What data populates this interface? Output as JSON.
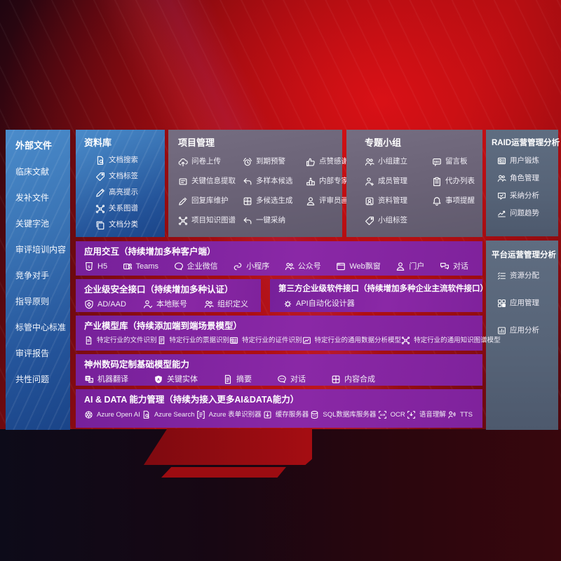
{
  "colors": {
    "background_red": "#b01014",
    "panel_blue": "#2f66ab",
    "panel_slate": "#6a6276",
    "panel_steel": "#56637b",
    "row_purple": "#8228a0",
    "text": "#ffffff"
  },
  "left_panel": {
    "title": "外部文件",
    "items": [
      {
        "label": "临床文献"
      },
      {
        "label": "发补文件"
      },
      {
        "label": "关键字池"
      },
      {
        "label": "审评培训内容"
      },
      {
        "label": "竞争对手"
      },
      {
        "label": "指导原则"
      },
      {
        "label": "标管中心标准"
      },
      {
        "label": "审评报告"
      },
      {
        "label": "共性问题"
      }
    ]
  },
  "library": {
    "title": "资料库",
    "items": [
      {
        "icon": "doc-search-icon",
        "label": "文档搜索"
      },
      {
        "icon": "tag-icon",
        "label": "文档标签"
      },
      {
        "icon": "highlighter-icon",
        "label": "高亮提示"
      },
      {
        "icon": "relation-graph-icon",
        "label": "关系图谱"
      },
      {
        "icon": "doc-category-icon",
        "label": "文档分类"
      }
    ]
  },
  "project": {
    "title": "项目管理",
    "items": [
      {
        "icon": "upload-cloud-icon",
        "label": "问卷上传"
      },
      {
        "icon": "alarm-icon",
        "label": "到期预警"
      },
      {
        "icon": "thumbs-up-icon",
        "label": "点赞感谢"
      },
      {
        "icon": "info-extract-icon",
        "label": "关键信息提取"
      },
      {
        "icon": "multi-sample-icon",
        "label": "多样本候选"
      },
      {
        "icon": "rank-icon",
        "label": "内部专家排名"
      },
      {
        "icon": "edit-pen-icon",
        "label": "回复库维护"
      },
      {
        "icon": "multi-generate-icon",
        "label": "多候选生成"
      },
      {
        "icon": "reviewer-icon",
        "label": "评审员画像"
      },
      {
        "icon": "knowledge-graph-icon",
        "label": "项目知识图谱"
      },
      {
        "icon": "adopt-icon",
        "label": "一键采纳"
      }
    ]
  },
  "groups": {
    "title": "专题小组",
    "items": [
      {
        "icon": "team-icon",
        "label": "小组建立"
      },
      {
        "icon": "bbs-icon",
        "label": "留言板"
      },
      {
        "icon": "member-icon",
        "label": "成员管理"
      },
      {
        "icon": "todo-icon",
        "label": "代办列表"
      },
      {
        "icon": "material-icon",
        "label": "资料管理"
      },
      {
        "icon": "bell-icon",
        "label": "事项提醒"
      },
      {
        "icon": "tag-icon",
        "label": "小组标签"
      }
    ]
  },
  "raid": {
    "title": "RAID运营管理分析",
    "items": [
      {
        "icon": "id-card-icon",
        "label": "用户锻炼"
      },
      {
        "icon": "roles-icon",
        "label": "角色管理"
      },
      {
        "icon": "adopt-analysis-icon",
        "label": "采纳分析"
      },
      {
        "icon": "trend-icon",
        "label": "问题趋势"
      }
    ]
  },
  "platform": {
    "title": "平台运营管理分析",
    "items": [
      {
        "icon": "allocation-icon",
        "label": "资源分配"
      },
      {
        "icon": "apps-icon",
        "label": "应用管理"
      },
      {
        "icon": "app-analysis-icon",
        "label": "应用分析"
      }
    ]
  },
  "rows": {
    "interaction": {
      "title": "应用交互（持续增加多种客户端）",
      "items": [
        {
          "icon": "h5-icon",
          "label": "H5"
        },
        {
          "icon": "teams-icon",
          "label": "Teams"
        },
        {
          "icon": "wecom-icon",
          "label": "企业微信"
        },
        {
          "icon": "miniprogram-icon",
          "label": "小程序"
        },
        {
          "icon": "official-account-icon",
          "label": "公众号"
        },
        {
          "icon": "web-window-icon",
          "label": "Web飘窗"
        },
        {
          "icon": "portal-icon",
          "label": "门户"
        },
        {
          "icon": "dialog-icon",
          "label": "对话"
        }
      ]
    },
    "security": {
      "title": "企业级安全接口（持续增加多种认证）",
      "items": [
        {
          "icon": "shield-icon",
          "label": "AD/AAD"
        },
        {
          "icon": "local-account-icon",
          "label": "本地账号"
        },
        {
          "icon": "org-icon",
          "label": "组织定义"
        }
      ]
    },
    "thirdparty": {
      "title": "第三方企业级软件接口（持续增加多种企业主流软件接口）",
      "items": [
        {
          "icon": "api-gear-icon",
          "label": "API自动化设计器"
        }
      ]
    },
    "industry": {
      "title": "产业模型库（持续添加端到端场景模型）",
      "items": [
        {
          "icon": "file-icon",
          "label": "特定行业的文件识别"
        },
        {
          "icon": "receipt-icon",
          "label": "特定行业的票据识别"
        },
        {
          "icon": "certificate-icon",
          "label": "特定行业的证件识别"
        },
        {
          "icon": "data-model-icon",
          "label": "特定行业的通用数据分析模型"
        },
        {
          "icon": "knowledge-model-icon",
          "label": "特定行业的通用知识图谱模型"
        }
      ]
    },
    "basemodel": {
      "title": "神州数码定制基础模型能力",
      "items": [
        {
          "icon": "translate-icon",
          "label": "机器翻译"
        },
        {
          "icon": "entity-icon",
          "label": "关键实体"
        },
        {
          "icon": "summary-icon",
          "label": "摘要"
        },
        {
          "icon": "chat-icon",
          "label": "对话"
        },
        {
          "icon": "compose-icon",
          "label": "内容合成"
        }
      ]
    },
    "aidata": {
      "title": "AI & DATA 能力管理（持续为接入更多AI&DATA能力）",
      "items": [
        {
          "icon": "openai-icon",
          "label": "Azure Open AI"
        },
        {
          "icon": "azure-search-icon",
          "label": "Azure Search"
        },
        {
          "icon": "form-recognizer-icon",
          "label": "Azure 表单识别器"
        },
        {
          "icon": "cache-server-icon",
          "label": "缓存服务器"
        },
        {
          "icon": "sql-db-icon",
          "label": "SQL数据库服务器"
        },
        {
          "icon": "ocr-icon",
          "label": "OCR"
        },
        {
          "icon": "speech-icon",
          "label": "语音理解"
        },
        {
          "icon": "tts-icon",
          "label": "TTS"
        }
      ]
    }
  }
}
